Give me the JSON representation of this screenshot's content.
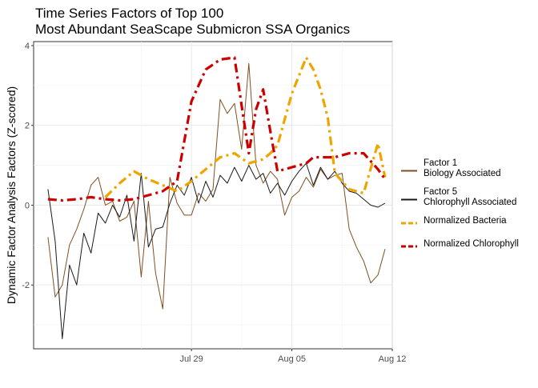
{
  "chart_data": {
    "type": "line",
    "title_lines": [
      "Time Series Factors of Top 100",
      "Most Abundant SeaScape Submicron SSA Organics"
    ],
    "xlabel": "",
    "ylabel": "Dynamic Factor Analysis Factors (Z-scored)",
    "x_axis": {
      "type": "date",
      "range": [
        "2019-07-18",
        "2019-08-12"
      ],
      "ticks": [
        {
          "date": "2019-07-29",
          "label": "Jul 29"
        },
        {
          "date": "2019-08-05",
          "label": "Aug 05"
        },
        {
          "date": "2019-08-12",
          "label": "Aug 12"
        }
      ]
    },
    "y_axis": {
      "range": [
        -3.6,
        4.1
      ],
      "ticks": [
        -2,
        0,
        2,
        4
      ],
      "tick_labels": [
        "-2",
        "0",
        "2",
        "4"
      ]
    },
    "grid": true,
    "legend_placement": "right",
    "series": [
      {
        "key": "factor1",
        "legend_lines": [
          "Factor 1",
          "Biology Associated"
        ],
        "color": "#7f4f1f",
        "style": "solid",
        "x": [
          "2019-07-19T00:00",
          "2019-07-19T12:00",
          "2019-07-20T00:00",
          "2019-07-20T12:00",
          "2019-07-21T00:00",
          "2019-07-21T12:00",
          "2019-07-22T00:00",
          "2019-07-22T12:00",
          "2019-07-23T00:00",
          "2019-07-23T12:00",
          "2019-07-24T00:00",
          "2019-07-24T12:00",
          "2019-07-25T00:00",
          "2019-07-25T12:00",
          "2019-07-26T00:00",
          "2019-07-26T12:00",
          "2019-07-27T00:00",
          "2019-07-27T12:00",
          "2019-07-28T00:00",
          "2019-07-28T12:00",
          "2019-07-29T00:00",
          "2019-07-29T12:00",
          "2019-07-30T00:00",
          "2019-07-30T12:00",
          "2019-07-31T00:00",
          "2019-07-31T12:00",
          "2019-08-01T00:00",
          "2019-08-01T12:00",
          "2019-08-02T00:00",
          "2019-08-02T12:00",
          "2019-08-03T00:00",
          "2019-08-03T12:00",
          "2019-08-04T00:00",
          "2019-08-04T12:00",
          "2019-08-05T00:00",
          "2019-08-05T12:00",
          "2019-08-06T00:00",
          "2019-08-06T12:00",
          "2019-08-07T00:00",
          "2019-08-07T12:00",
          "2019-08-08T00:00",
          "2019-08-08T12:00",
          "2019-08-09T00:00",
          "2019-08-09T12:00",
          "2019-08-10T00:00",
          "2019-08-10T12:00",
          "2019-08-11T00:00",
          "2019-08-11T12:00"
        ],
        "y": [
          -0.8,
          -2.3,
          -2.0,
          -1.0,
          -0.6,
          -0.1,
          0.5,
          0.7,
          0.0,
          0.1,
          -0.4,
          -0.3,
          0.1,
          -1.8,
          0.1,
          -1.7,
          -2.6,
          0.7,
          0.05,
          -0.25,
          -0.25,
          0.3,
          0.1,
          0.4,
          2.65,
          2.3,
          2.55,
          1.4,
          3.55,
          1.0,
          0.55,
          0.85,
          0.65,
          -0.25,
          0.2,
          0.35,
          0.7,
          0.45,
          0.9,
          0.65,
          0.75,
          0.8,
          -0.6,
          -1.05,
          -1.4,
          -1.95,
          -1.75,
          -1.1
        ]
      },
      {
        "key": "factor5",
        "legend_lines": [
          "Factor 5",
          "Chlorophyll Associated"
        ],
        "color": "#1a1a1a",
        "style": "solid",
        "x": [
          "2019-07-19T00:00",
          "2019-07-19T12:00",
          "2019-07-20T00:00",
          "2019-07-20T12:00",
          "2019-07-21T00:00",
          "2019-07-21T12:00",
          "2019-07-22T00:00",
          "2019-07-22T12:00",
          "2019-07-23T00:00",
          "2019-07-23T12:00",
          "2019-07-24T00:00",
          "2019-07-24T12:00",
          "2019-07-25T00:00",
          "2019-07-25T12:00",
          "2019-07-26T00:00",
          "2019-07-26T12:00",
          "2019-07-27T00:00",
          "2019-07-27T12:00",
          "2019-07-28T00:00",
          "2019-07-28T12:00",
          "2019-07-29T00:00",
          "2019-07-29T12:00",
          "2019-07-30T00:00",
          "2019-07-30T12:00",
          "2019-07-31T00:00",
          "2019-07-31T12:00",
          "2019-08-01T00:00",
          "2019-08-01T12:00",
          "2019-08-02T00:00",
          "2019-08-02T12:00",
          "2019-08-03T00:00",
          "2019-08-03T12:00",
          "2019-08-04T00:00",
          "2019-08-04T12:00",
          "2019-08-05T00:00",
          "2019-08-05T12:00",
          "2019-08-06T00:00",
          "2019-08-06T12:00",
          "2019-08-07T00:00",
          "2019-08-07T12:00",
          "2019-08-08T00:00",
          "2019-08-08T12:00",
          "2019-08-09T00:00",
          "2019-08-09T12:00",
          "2019-08-10T00:00",
          "2019-08-10T12:00",
          "2019-08-11T00:00",
          "2019-08-11T12:00"
        ],
        "y": [
          0.4,
          -0.9,
          -3.35,
          -1.5,
          -2.0,
          -0.7,
          -1.2,
          -0.2,
          -0.45,
          0.0,
          -0.3,
          0.25,
          -0.9,
          0.8,
          -1.05,
          -0.6,
          -0.55,
          0.05,
          0.5,
          0.25,
          0.7,
          0.05,
          0.6,
          0.2,
          0.75,
          0.55,
          0.95,
          0.6,
          1.0,
          0.65,
          0.8,
          0.3,
          0.55,
          0.25,
          0.6,
          0.85,
          1.05,
          0.5,
          0.95,
          0.65,
          0.85,
          0.55,
          0.35,
          0.3,
          0.15,
          0.0,
          -0.05,
          0.05
        ]
      },
      {
        "key": "bacteria",
        "legend_lines": [
          "Normalized Bacteria"
        ],
        "color": "#f0a400",
        "style": "dashed",
        "x": [
          "2019-07-23T00:00",
          "2019-07-24T00:00",
          "2019-07-25T00:00",
          "2019-07-26T00:00",
          "2019-07-27T00:00",
          "2019-07-28T00:00",
          "2019-07-29T00:00",
          "2019-07-30T00:00",
          "2019-07-31T00:00",
          "2019-08-01T00:00",
          "2019-08-02T00:00",
          "2019-08-03T00:00",
          "2019-08-03T12:00",
          "2019-08-04T00:00",
          "2019-08-05T00:00",
          "2019-08-06T00:00",
          "2019-08-06T12:00",
          "2019-08-07T00:00",
          "2019-08-07T12:00",
          "2019-08-08T00:00",
          "2019-08-09T00:00",
          "2019-08-10T00:00",
          "2019-08-11T00:00",
          "2019-08-11T12:00"
        ],
        "y": [
          0.2,
          0.55,
          0.85,
          0.65,
          0.5,
          0.35,
          0.6,
          0.9,
          1.2,
          1.3,
          1.05,
          1.15,
          1.3,
          1.5,
          2.8,
          3.7,
          3.4,
          2.9,
          2.2,
          0.8,
          0.4,
          0.3,
          1.55,
          0.7
        ]
      },
      {
        "key": "chlorophyll",
        "legend_lines": [
          "Normalized Chlorophyll"
        ],
        "color": "#cc0000",
        "style": "dashed",
        "x": [
          "2019-07-19T00:00",
          "2019-07-20T00:00",
          "2019-07-21T00:00",
          "2019-07-22T00:00",
          "2019-07-23T00:00",
          "2019-07-24T00:00",
          "2019-07-25T00:00",
          "2019-07-25T12:00",
          "2019-07-26T00:00",
          "2019-07-26T12:00",
          "2019-07-27T00:00",
          "2019-07-28T00:00",
          "2019-07-29T00:00",
          "2019-07-30T00:00",
          "2019-07-31T00:00",
          "2019-08-01T00:00",
          "2019-08-01T12:00",
          "2019-08-02T00:00",
          "2019-08-02T12:00",
          "2019-08-03T00:00",
          "2019-08-03T12:00",
          "2019-08-04T00:00",
          "2019-08-05T00:00",
          "2019-08-06T00:00",
          "2019-08-06T12:00",
          "2019-08-07T00:00",
          "2019-08-08T00:00",
          "2019-08-09T00:00",
          "2019-08-10T00:00",
          "2019-08-11T00:00",
          "2019-08-11T12:00"
        ],
        "y": [
          0.15,
          0.12,
          0.15,
          0.2,
          0.15,
          0.12,
          0.15,
          0.2,
          0.25,
          0.3,
          0.35,
          0.6,
          2.6,
          3.4,
          3.65,
          3.7,
          2.5,
          1.3,
          2.4,
          2.9,
          1.85,
          0.85,
          0.95,
          1.05,
          1.2,
          1.2,
          1.2,
          1.3,
          1.3,
          0.9,
          0.65
        ]
      }
    ]
  }
}
